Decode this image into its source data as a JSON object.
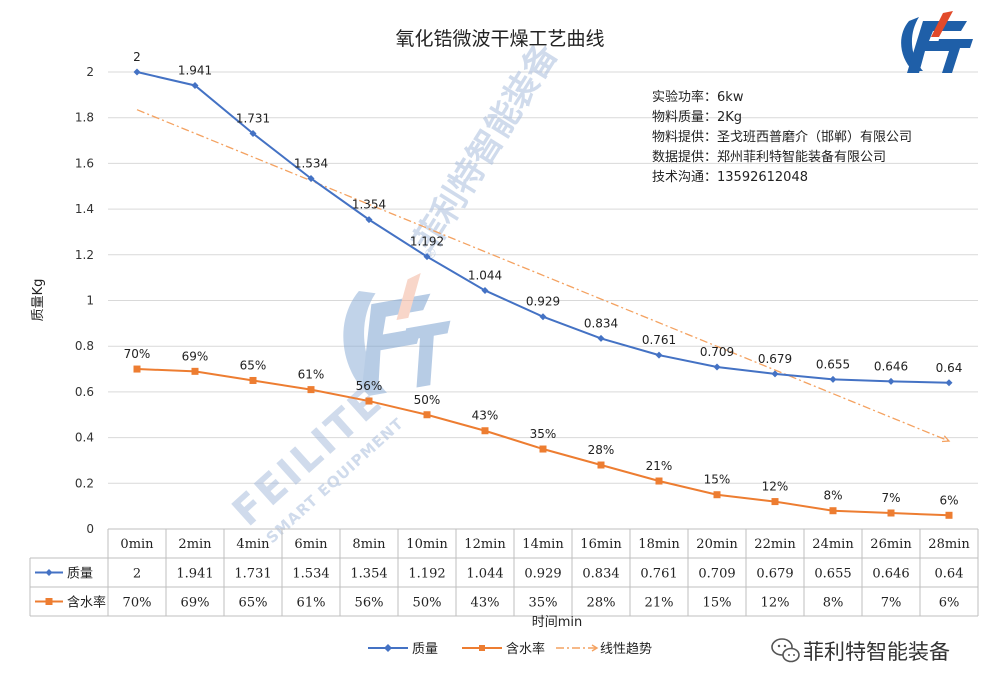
{
  "chart_data": {
    "type": "line",
    "title": "氧化锆微波干燥工艺曲线",
    "xlabel": "时间min",
    "ylabel": "质量Kg",
    "ylim": [
      0,
      2
    ],
    "yticks": [
      "0",
      "0.2",
      "0.4",
      "0.6",
      "0.8",
      "1",
      "1.2",
      "1.4",
      "1.6",
      "1.8",
      "2"
    ],
    "categories": [
      "0min",
      "2min",
      "4min",
      "6min",
      "8min",
      "10min",
      "12min",
      "14min",
      "16min",
      "18min",
      "20min",
      "22min",
      "24min",
      "26min",
      "28min"
    ],
    "series": [
      {
        "name": "质量",
        "color": "#4472c4",
        "marker": "diamond",
        "values": [
          2,
          1.941,
          1.731,
          1.534,
          1.354,
          1.192,
          1.044,
          0.929,
          0.834,
          0.761,
          0.709,
          0.679,
          0.655,
          0.646,
          0.64
        ],
        "labels": [
          "2",
          "1.941",
          "1.731",
          "1.534",
          "1.354",
          "1.192",
          "1.044",
          "0.929",
          "0.834",
          "0.761",
          "0.709",
          "0.679",
          "0.655",
          "0.646",
          "0.64"
        ]
      },
      {
        "name": "含水率",
        "color": "#ed7d31",
        "marker": "square",
        "values": [
          0.7,
          0.69,
          0.65,
          0.61,
          0.56,
          0.5,
          0.43,
          0.35,
          0.28,
          0.21,
          0.15,
          0.12,
          0.08,
          0.07,
          0.06
        ],
        "labels": [
          "70%",
          "69%",
          "65%",
          "61%",
          "56%",
          "50%",
          "43%",
          "35%",
          "28%",
          "21%",
          "15%",
          "12%",
          "8%",
          "7%",
          "6%"
        ]
      }
    ],
    "trendline": {
      "name": "线性趋势",
      "color": "#f4a261",
      "style": "dash-dot",
      "of_series": "质量",
      "from": 1.835,
      "to": 0.385
    },
    "grid": true,
    "legend": "bottom",
    "data_table": true
  },
  "info": {
    "power_label": "实验功率：",
    "power_value": "6kw",
    "mass_label": "物料质量：",
    "mass_value": "2Kg",
    "supplier_label": "物料提供：",
    "supplier_value": "圣戈班西普磨介（邯郸）有限公司",
    "data_label": "数据提供：",
    "data_value": "郑州菲利特智能装备有限公司",
    "contact_label": "技术沟通：",
    "contact_value": "13592612048"
  },
  "watermark": {
    "brand": "FEILITE",
    "tagline": "SMART EQUIPMENT",
    "chinese": "菲利特智能装备",
    "mark": "®"
  },
  "account": {
    "name": "菲利特智能装备",
    "icon": "wechat-icon"
  }
}
